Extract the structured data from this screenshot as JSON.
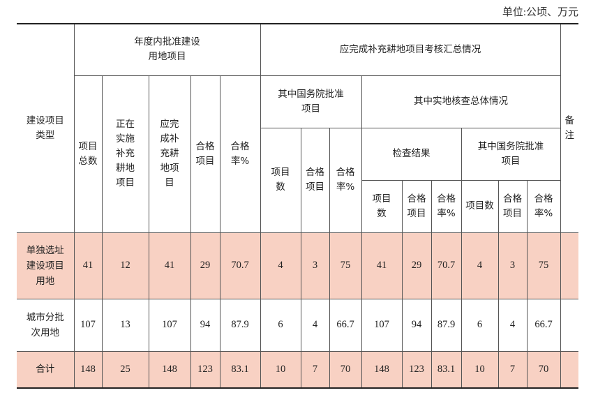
{
  "unit_label": "单位:公顷、万元",
  "header": {
    "type": "建设项目\n类型",
    "annual_group": "年度内批准建设\n用地项目",
    "assessment_group": "应完成补充耕地项目考核汇总情况",
    "remarks": "备\n注",
    "total_projects": "项目\n总数",
    "implementing": "正在\n实施\n补充\n耕地\n项目",
    "should_complete": "应完\n成补\n充耕\n地项\n目",
    "qualified": "合格\n项目",
    "rate": "合格\n率%",
    "state_council_group": "其中国务院批准\n项目",
    "field_check_group": "其中实地核查总体情况",
    "sc_count": "项目\n数",
    "sc_qualified": "合格\n项目",
    "sc_rate": "合格\n率%",
    "check_result_group": "检查结果",
    "fc_state_council_group": "其中国务院批准\n项目",
    "cr_count": "项目\n数",
    "cr_qualified": "合格\n项目",
    "cr_rate": "合格\n率%",
    "fsc_count": "项目数",
    "fsc_qualified": "合格\n项目",
    "fsc_rate": "合格\n率%"
  },
  "rows": [
    {
      "label": "单独选址\n建设项目\n用地",
      "highlight": true,
      "values": [
        "41",
        "12",
        "41",
        "29",
        "70.7",
        "4",
        "3",
        "75",
        "41",
        "29",
        "70.7",
        "4",
        "3",
        "75",
        ""
      ]
    },
    {
      "label": "城市分批\n次用地",
      "highlight": false,
      "values": [
        "107",
        "13",
        "107",
        "94",
        "87.9",
        "6",
        "4",
        "66.7",
        "107",
        "94",
        "87.9",
        "6",
        "4",
        "66.7",
        ""
      ]
    },
    {
      "label": "合计",
      "highlight": true,
      "values": [
        "148",
        "25",
        "148",
        "123",
        "83.1",
        "10",
        "7",
        "70",
        "148",
        "123",
        "83.1",
        "10",
        "7",
        "70",
        ""
      ]
    }
  ],
  "colors": {
    "highlight_row": "#f8d1c3",
    "border": "#555555"
  }
}
